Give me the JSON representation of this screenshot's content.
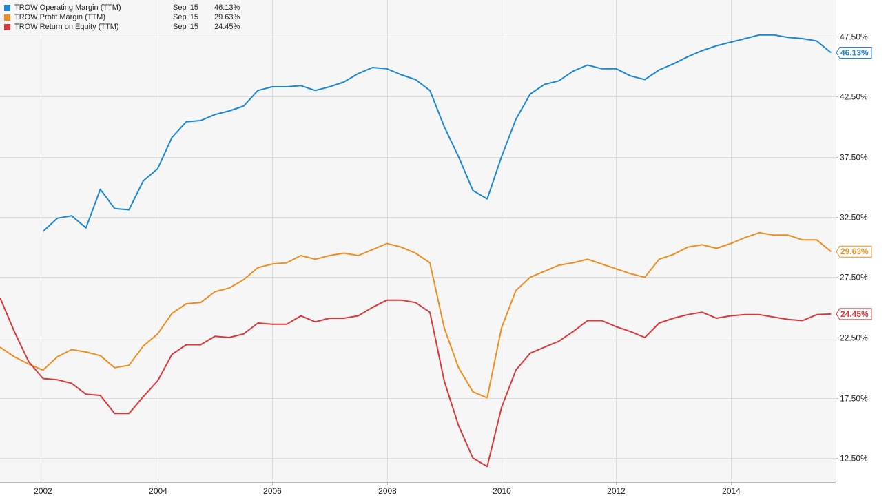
{
  "chart_data": {
    "type": "line",
    "xlim": [
      2001.25,
      2015.83
    ],
    "ylim": [
      10.5,
      50.5
    ],
    "grid": true,
    "yticks": [
      12.5,
      17.5,
      22.5,
      27.5,
      32.5,
      37.5,
      42.5,
      47.5
    ],
    "ytick_labels": [
      "12.50%",
      "17.50%",
      "22.50%",
      "27.50%",
      "32.50%",
      "37.50%",
      "42.50%",
      "47.50%"
    ],
    "xticks": [
      2002,
      2004,
      2006,
      2008,
      2010,
      2012,
      2014
    ],
    "xtick_labels": [
      "2002",
      "2004",
      "2006",
      "2008",
      "2010",
      "2012",
      "2014"
    ],
    "legend_position": "top-left",
    "series": [
      {
        "name": "TROW Operating Margin (TTM)",
        "date_label": "Sep '15",
        "last_label": "46.13%",
        "last_value": 46.13,
        "color": "#1c86d6",
        "points": [
          [
            2002.0,
            31.3
          ],
          [
            2002.25,
            32.4
          ],
          [
            2002.5,
            32.6
          ],
          [
            2002.75,
            31.6
          ],
          [
            2003.0,
            34.8
          ],
          [
            2003.25,
            33.2
          ],
          [
            2003.5,
            33.1
          ],
          [
            2003.75,
            35.5
          ],
          [
            2004.0,
            36.5
          ],
          [
            2004.25,
            39.1
          ],
          [
            2004.5,
            40.4
          ],
          [
            2004.75,
            40.5
          ],
          [
            2005.0,
            41.0
          ],
          [
            2005.25,
            41.3
          ],
          [
            2005.5,
            41.7
          ],
          [
            2005.75,
            43.0
          ],
          [
            2006.0,
            43.3
          ],
          [
            2006.25,
            43.3
          ],
          [
            2006.5,
            43.4
          ],
          [
            2006.75,
            43.0
          ],
          [
            2007.0,
            43.3
          ],
          [
            2007.25,
            43.7
          ],
          [
            2007.5,
            44.4
          ],
          [
            2007.75,
            44.9
          ],
          [
            2008.0,
            44.8
          ],
          [
            2008.25,
            44.3
          ],
          [
            2008.5,
            43.9
          ],
          [
            2008.75,
            43.0
          ],
          [
            2009.0,
            40.0
          ],
          [
            2009.25,
            37.5
          ],
          [
            2009.5,
            34.7
          ],
          [
            2009.75,
            34.0
          ],
          [
            2010.0,
            37.5
          ],
          [
            2010.25,
            40.6
          ],
          [
            2010.5,
            42.7
          ],
          [
            2010.75,
            43.5
          ],
          [
            2011.0,
            43.8
          ],
          [
            2011.25,
            44.6
          ],
          [
            2011.5,
            45.1
          ],
          [
            2011.75,
            44.8
          ],
          [
            2012.0,
            44.8
          ],
          [
            2012.25,
            44.2
          ],
          [
            2012.5,
            43.9
          ],
          [
            2012.75,
            44.7
          ],
          [
            2013.0,
            45.2
          ],
          [
            2013.25,
            45.8
          ],
          [
            2013.5,
            46.3
          ],
          [
            2013.75,
            46.7
          ],
          [
            2014.0,
            47.0
          ],
          [
            2014.25,
            47.3
          ],
          [
            2014.5,
            47.6
          ],
          [
            2014.75,
            47.6
          ],
          [
            2015.0,
            47.4
          ],
          [
            2015.25,
            47.3
          ],
          [
            2015.5,
            47.1
          ],
          [
            2015.75,
            46.13
          ]
        ]
      },
      {
        "name": "TROW Profit Margin (TTM)",
        "date_label": "Sep '15",
        "last_label": "29.63%",
        "last_value": 29.63,
        "color": "#f08c1e",
        "points": [
          [
            2001.25,
            21.7
          ],
          [
            2001.5,
            20.9
          ],
          [
            2001.75,
            20.3
          ],
          [
            2002.0,
            19.8
          ],
          [
            2002.25,
            20.9
          ],
          [
            2002.5,
            21.5
          ],
          [
            2002.75,
            21.3
          ],
          [
            2003.0,
            21.0
          ],
          [
            2003.25,
            20.0
          ],
          [
            2003.5,
            20.2
          ],
          [
            2003.75,
            21.8
          ],
          [
            2004.0,
            22.8
          ],
          [
            2004.25,
            24.5
          ],
          [
            2004.5,
            25.3
          ],
          [
            2004.75,
            25.4
          ],
          [
            2005.0,
            26.3
          ],
          [
            2005.25,
            26.6
          ],
          [
            2005.5,
            27.3
          ],
          [
            2005.75,
            28.3
          ],
          [
            2006.0,
            28.6
          ],
          [
            2006.25,
            28.7
          ],
          [
            2006.5,
            29.3
          ],
          [
            2006.75,
            29.0
          ],
          [
            2007.0,
            29.3
          ],
          [
            2007.25,
            29.5
          ],
          [
            2007.5,
            29.3
          ],
          [
            2007.75,
            29.8
          ],
          [
            2008.0,
            30.3
          ],
          [
            2008.25,
            30.0
          ],
          [
            2008.5,
            29.5
          ],
          [
            2008.75,
            28.7
          ],
          [
            2009.0,
            23.3
          ],
          [
            2009.25,
            20.0
          ],
          [
            2009.5,
            18.0
          ],
          [
            2009.75,
            17.5
          ],
          [
            2010.0,
            23.3
          ],
          [
            2010.25,
            26.4
          ],
          [
            2010.5,
            27.5
          ],
          [
            2010.75,
            28.0
          ],
          [
            2011.0,
            28.5
          ],
          [
            2011.25,
            28.7
          ],
          [
            2011.5,
            29.0
          ],
          [
            2011.75,
            28.6
          ],
          [
            2012.0,
            28.2
          ],
          [
            2012.25,
            27.8
          ],
          [
            2012.5,
            27.5
          ],
          [
            2012.75,
            29.0
          ],
          [
            2013.0,
            29.4
          ],
          [
            2013.25,
            30.0
          ],
          [
            2013.5,
            30.2
          ],
          [
            2013.75,
            29.9
          ],
          [
            2014.0,
            30.3
          ],
          [
            2014.25,
            30.8
          ],
          [
            2014.5,
            31.2
          ],
          [
            2014.75,
            31.0
          ],
          [
            2015.0,
            31.0
          ],
          [
            2015.25,
            30.6
          ],
          [
            2015.5,
            30.6
          ],
          [
            2015.75,
            29.63
          ]
        ]
      },
      {
        "name": "TROW Return on Equity (TTM)",
        "date_label": "Sep '15",
        "last_label": "24.45%",
        "last_value": 24.45,
        "color": "#d9383a",
        "points": [
          [
            2001.25,
            25.8
          ],
          [
            2001.5,
            23.0
          ],
          [
            2001.75,
            20.5
          ],
          [
            2002.0,
            19.1
          ],
          [
            2002.25,
            19.0
          ],
          [
            2002.5,
            18.7
          ],
          [
            2002.75,
            17.8
          ],
          [
            2003.0,
            17.7
          ],
          [
            2003.25,
            16.2
          ],
          [
            2003.5,
            16.2
          ],
          [
            2003.75,
            17.6
          ],
          [
            2004.0,
            18.9
          ],
          [
            2004.25,
            21.1
          ],
          [
            2004.5,
            21.9
          ],
          [
            2004.75,
            21.9
          ],
          [
            2005.0,
            22.6
          ],
          [
            2005.25,
            22.5
          ],
          [
            2005.5,
            22.8
          ],
          [
            2005.75,
            23.7
          ],
          [
            2006.0,
            23.6
          ],
          [
            2006.25,
            23.6
          ],
          [
            2006.5,
            24.3
          ],
          [
            2006.75,
            23.8
          ],
          [
            2007.0,
            24.1
          ],
          [
            2007.25,
            24.1
          ],
          [
            2007.5,
            24.3
          ],
          [
            2007.75,
            25.0
          ],
          [
            2008.0,
            25.6
          ],
          [
            2008.25,
            25.6
          ],
          [
            2008.5,
            25.4
          ],
          [
            2008.75,
            24.6
          ],
          [
            2009.0,
            18.9
          ],
          [
            2009.25,
            15.2
          ],
          [
            2009.5,
            12.5
          ],
          [
            2009.75,
            11.8
          ],
          [
            2010.0,
            16.7
          ],
          [
            2010.25,
            19.8
          ],
          [
            2010.5,
            21.2
          ],
          [
            2010.75,
            21.7
          ],
          [
            2011.0,
            22.2
          ],
          [
            2011.25,
            23.0
          ],
          [
            2011.5,
            23.9
          ],
          [
            2011.75,
            23.9
          ],
          [
            2012.0,
            23.4
          ],
          [
            2012.25,
            23.0
          ],
          [
            2012.5,
            22.5
          ],
          [
            2012.75,
            23.7
          ],
          [
            2013.0,
            24.1
          ],
          [
            2013.25,
            24.4
          ],
          [
            2013.5,
            24.6
          ],
          [
            2013.75,
            24.1
          ],
          [
            2014.0,
            24.3
          ],
          [
            2014.25,
            24.4
          ],
          [
            2014.5,
            24.4
          ],
          [
            2014.75,
            24.2
          ],
          [
            2015.0,
            24.0
          ],
          [
            2015.25,
            23.9
          ],
          [
            2015.5,
            24.4
          ],
          [
            2015.75,
            24.45
          ]
        ]
      }
    ]
  }
}
